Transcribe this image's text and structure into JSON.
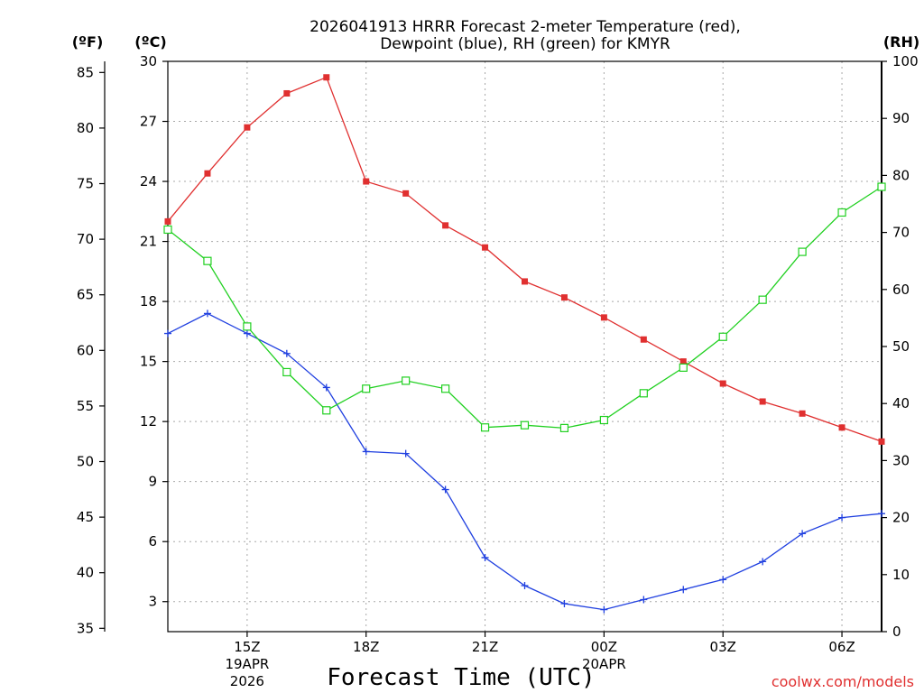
{
  "chart_data": {
    "type": "line",
    "title_line1": "2026041913 HRRR Forecast 2-meter Temperature (red),",
    "title_line2": "Dewpoint (blue), RH (green) for KMYR",
    "xlabel": "Forecast Time (UTC)",
    "credit": "coolwx.com/models",
    "units": {
      "fahrenheit": "(ºF)",
      "celsius": "(ºC)",
      "rh": "(RH)"
    },
    "axes": {
      "celsius": {
        "range": [
          1.5,
          30
        ],
        "ticks": [
          "3",
          "6",
          "9",
          "12",
          "15",
          "18",
          "21",
          "24",
          "27",
          "30"
        ]
      },
      "fahrenheit": {
        "range": [
          34.7,
          86
        ],
        "ticks": [
          "35",
          "40",
          "45",
          "50",
          "55",
          "60",
          "65",
          "70",
          "75",
          "80",
          "85"
        ]
      },
      "rh": {
        "range": [
          0,
          100
        ],
        "ticks": [
          "0",
          "10",
          "20",
          "30",
          "40",
          "50",
          "60",
          "70",
          "80",
          "90",
          "100"
        ]
      },
      "x": {
        "range": [
          13,
          31
        ]
      }
    },
    "x_ticks": [
      {
        "hour": 15,
        "label": "15Z",
        "sub1": "19APR",
        "sub2": "2026"
      },
      {
        "hour": 18,
        "label": "18Z"
      },
      {
        "hour": 21,
        "label": "21Z"
      },
      {
        "hour": 24,
        "label": "00Z",
        "sub1": "20APR"
      },
      {
        "hour": 27,
        "label": "03Z"
      },
      {
        "hour": 30,
        "label": "06Z"
      }
    ],
    "hours": [
      13,
      14,
      15,
      16,
      17,
      18,
      19,
      20,
      21,
      22,
      23,
      24,
      25,
      26,
      27,
      28,
      29,
      30,
      31
    ],
    "series": [
      {
        "name": "Temperature",
        "axis": "celsius",
        "color": "#e03030",
        "marker": "filled-square",
        "values": [
          22.0,
          24.4,
          26.7,
          28.4,
          29.2,
          24.0,
          23.4,
          21.8,
          20.7,
          19.0,
          18.2,
          17.2,
          16.1,
          15.0,
          13.9,
          13.0,
          12.4,
          11.7,
          11.0
        ]
      },
      {
        "name": "Dewpoint",
        "axis": "celsius",
        "color": "#2040e0",
        "marker": "plus",
        "values": [
          16.4,
          17.4,
          16.4,
          15.4,
          13.7,
          10.5,
          10.4,
          8.6,
          5.2,
          3.8,
          2.9,
          2.6,
          3.1,
          3.6,
          4.1,
          5.0,
          6.4,
          7.2,
          7.4
        ]
      },
      {
        "name": "RH",
        "axis": "rh",
        "color": "#20d020",
        "marker": "open-square",
        "values": [
          70.5,
          65.0,
          53.5,
          45.5,
          38.8,
          42.6,
          44.0,
          42.6,
          35.8,
          36.2,
          35.7,
          37.1,
          41.8,
          46.3,
          51.7,
          58.2,
          66.6,
          73.5,
          78.0
        ]
      }
    ]
  }
}
